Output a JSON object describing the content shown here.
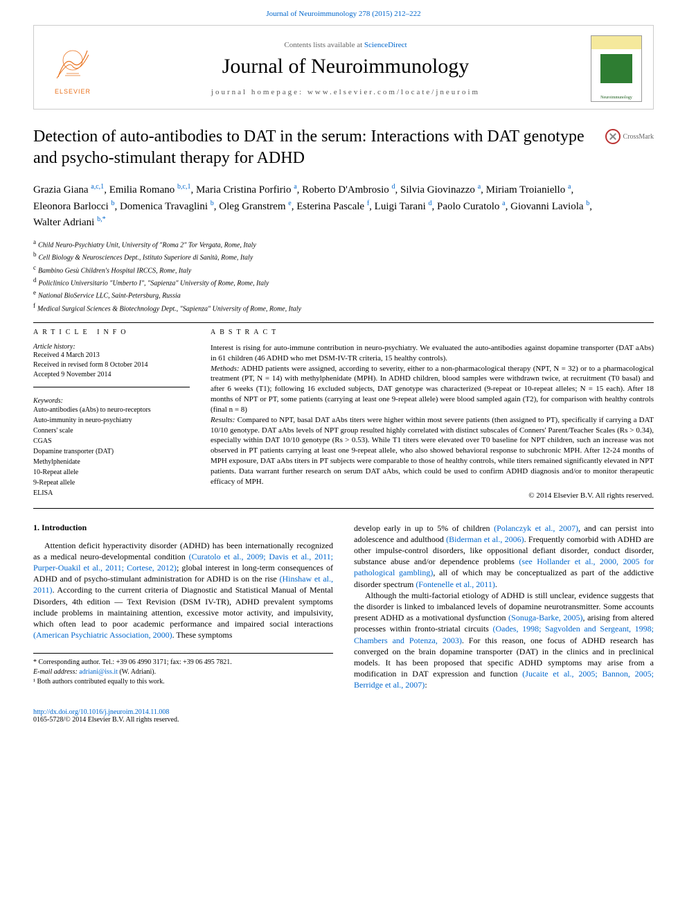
{
  "top_link": "Journal of Neuroimmunology 278 (2015) 212–222",
  "header": {
    "contents_prefix": "Contents lists available at ",
    "contents_link": "ScienceDirect",
    "journal_title": "Journal of Neuroimmunology",
    "homepage_prefix": "journal homepage: ",
    "homepage": "www.elsevier.com/locate/jneuroim",
    "elsevier": "ELSEVIER",
    "cover_text": "Neuroimmunology"
  },
  "crossmark": "CrossMark",
  "title": "Detection of auto-antibodies to DAT in the serum: Interactions with DAT genotype and psycho-stimulant therapy for ADHD",
  "authors": [
    {
      "name": "Grazia Giana",
      "aff": "a,c,1"
    },
    {
      "name": "Emilia Romano",
      "aff": "b,c,1"
    },
    {
      "name": "Maria Cristina Porfirio",
      "aff": "a"
    },
    {
      "name": "Roberto D'Ambrosio",
      "aff": "d"
    },
    {
      "name": "Silvia Giovinazzo",
      "aff": "a"
    },
    {
      "name": "Miriam Troianiello",
      "aff": "a"
    },
    {
      "name": "Eleonora Barlocci",
      "aff": "b"
    },
    {
      "name": "Domenica Travaglini",
      "aff": "b"
    },
    {
      "name": "Oleg Granstrem",
      "aff": "e"
    },
    {
      "name": "Esterina Pascale",
      "aff": "f"
    },
    {
      "name": "Luigi Tarani",
      "aff": "d"
    },
    {
      "name": "Paolo Curatolo",
      "aff": "a"
    },
    {
      "name": "Giovanni Laviola",
      "aff": "b"
    },
    {
      "name": "Walter Adriani",
      "aff": "b,*"
    }
  ],
  "affiliations": [
    {
      "label": "a",
      "text": "Child Neuro-Psychiatry Unit, University of \"Roma 2\" Tor Vergata, Rome, Italy"
    },
    {
      "label": "b",
      "text": "Cell Biology & Neurosciences Dept., Istituto Superiore di Sanità, Rome, Italy"
    },
    {
      "label": "c",
      "text": "Bambino Gesù Children's Hospital IRCCS, Rome, Italy"
    },
    {
      "label": "d",
      "text": "Policlinico Universitario \"Umberto I\", \"Sapienza\" University of Rome, Rome, Italy"
    },
    {
      "label": "e",
      "text": "National BioService LLC, Saint-Petersburg, Russia"
    },
    {
      "label": "f",
      "text": "Medical Surgical Sciences & Biotechnology Dept., \"Sapienza\" University of Rome, Rome, Italy"
    }
  ],
  "info": {
    "heading": "article info",
    "history_label": "Article history:",
    "history": [
      "Received 4 March 2013",
      "Received in revised form 8 October 2014",
      "Accepted 9 November 2014"
    ],
    "keywords_label": "Keywords:",
    "keywords": [
      "Auto-antibodies (aAbs) to neuro-receptors",
      "Auto-immunity in neuro-psychiatry",
      "Conners' scale",
      "CGAS",
      "Dopamine transporter (DAT)",
      "Methylphenidate",
      "10-Repeat allele",
      "9-Repeat allele",
      "ELISA"
    ]
  },
  "abstract": {
    "heading": "abstract",
    "p1": "Interest is rising for auto-immune contribution in neuro-psychiatry. We evaluated the auto-antibodies against dopamine transporter (DAT aAbs) in 61 children (46 ADHD who met DSM-IV-TR criteria, 15 healthy controls).",
    "p2_label": "Methods:",
    "p2": " ADHD patients were assigned, according to severity, either to a non-pharmacological therapy (NPT, N = 32) or to a pharmacological treatment (PT, N = 14) with methylphenidate (MPH). In ADHD children, blood samples were withdrawn twice, at recruitment (T0 basal) and after 6 weeks (T1); following 16 excluded subjects, DAT genotype was characterized (9-repeat or 10-repeat alleles; N = 15 each). After 18 months of NPT or PT, some patients (carrying at least one 9-repeat allele) were blood sampled again (T2), for comparison with healthy controls (final n = 8)",
    "p3_label": "Results:",
    "p3": " Compared to NPT, basal DAT aAbs titers were higher within most severe patients (then assigned to PT), specifically if carrying a DAT 10/10 genotype. DAT aAbs levels of NPT group resulted highly correlated with distinct subscales of Conners' Parent/Teacher Scales (Rs > 0.34), especially within DAT 10/10 genotype (Rs > 0.53). While T1 titers were elevated over T0 baseline for NPT children, such an increase was not observed in PT patients carrying at least one 9-repeat allele, who also showed behavioral response to subchronic MPH. After 12-24 months of MPH exposure, DAT aAbs titers in PT subjects were comparable to those of healthy controls, while titers remained significantly elevated in NPT patients. Data warrant further research on serum DAT aAbs, which could be used to confirm ADHD diagnosis and/or to monitor therapeutic efficacy of MPH.",
    "copyright": "© 2014 Elsevier B.V. All rights reserved."
  },
  "body": {
    "heading": "1. Introduction",
    "col1": "Attention deficit hyperactivity disorder (ADHD) has been internationally recognized as a medical neuro-developmental condition (Curatolo et al., 2009; Davis et al., 2011; Purper-Ouakil et al., 2011; Cortese, 2012); global interest in long-term consequences of ADHD and of psycho-stimulant administration for ADHD is on the rise (Hinshaw et al., 2011). According to the current criteria of Diagnostic and Statistical Manual of Mental Disorders, 4th edition — Text Revision (DSM IV-TR), ADHD prevalent symptoms include problems in maintaining attention, excessive motor activity, and impulsivity, which often lead to poor academic performance and impaired social interactions (American Psychiatric Association, 2000). These symptoms",
    "col2a": "develop early in up to 5% of children (Polanczyk et al., 2007), and can persist into adolescence and adulthood (Biderman et al., 2006). Frequently comorbid with ADHD are other impulse-control disorders, like oppositional defiant disorder, conduct disorder, substance abuse and/or dependence problems (see Hollander et al., 2000, 2005 for pathological gambling), all of which may be conceptualized as part of the addictive disorder spectrum (Fontenelle et al., 2011).",
    "col2b": "Although the multi-factorial etiology of ADHD is still unclear, evidence suggests that the disorder is linked to imbalanced levels of dopamine neurotransmitter. Some accounts present ADHD as a motivational dysfunction (Sonuga-Barke, 2005), arising from altered processes within fronto-striatal circuits (Oades, 1998; Sagvolden and Sergeant, 1998; Chambers and Potenza, 2003). For this reason, one focus of ADHD research has converged on the brain dopamine transporter (DAT) in the clinics and in preclinical models. It has been proposed that specific ADHD symptoms may arise from a modification in DAT expression and function (Jucaite et al., 2005; Bannon, 2005; Berridge et al., 2007):"
  },
  "footnotes": {
    "corr": "* Corresponding author. Tel.: +39 06 4990 3171; fax: +39 06 495 7821.",
    "email_label": "E-mail address: ",
    "email": "adriani@iss.it",
    "email_suffix": " (W. Adriani).",
    "equal": "¹ Both authors contributed equally to this work."
  },
  "footer": {
    "doi": "http://dx.doi.org/10.1016/j.jneuroim.2014.11.008",
    "issn": "0165-5728/© 2014 Elsevier B.V. All rights reserved."
  },
  "colors": {
    "link": "#0066cc",
    "elsevier_orange": "#e9711c",
    "text": "#000000",
    "grid": "#cccccc"
  }
}
